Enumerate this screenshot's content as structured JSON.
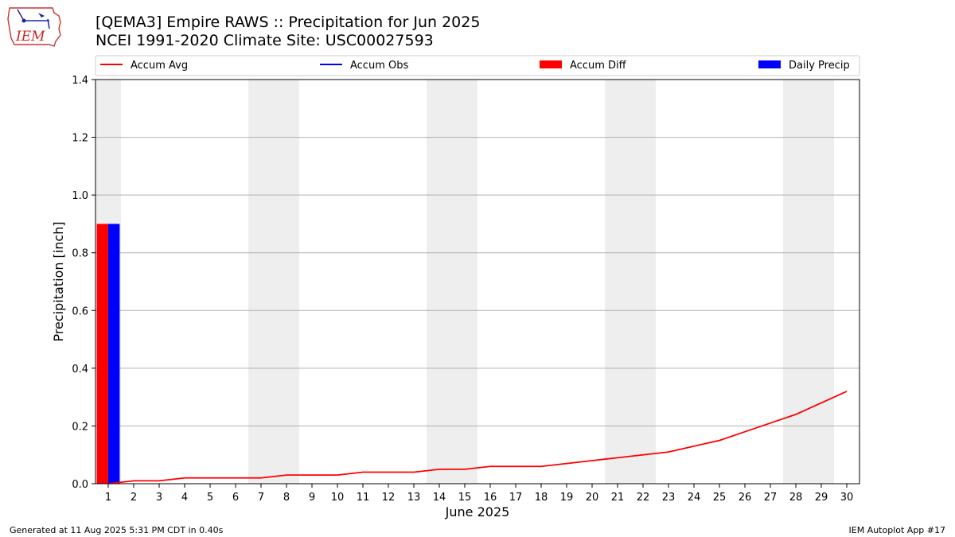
{
  "header": {
    "title_line1": "[QEMA3] Empire RAWS :: Precipitation for Jun 2025",
    "title_line2": "NCEI 1991-2020 Climate Site: USC00027593"
  },
  "logo": {
    "text": "IEM",
    "icon": "iowa-state-outline-logo"
  },
  "footer": {
    "left": "Generated at 11 Aug 2025 5:31 PM CDT in 0.40s",
    "right": "IEM Autoplot App #17"
  },
  "colors": {
    "avg": "#ff0000",
    "obs": "#0000ff",
    "diff": "#ff0000",
    "daily": "#0000ff",
    "weekend": "#eeeeee",
    "grid": "#b0b0b0"
  },
  "chart_data": {
    "type": "bar",
    "xlabel": "June 2025",
    "ylabel": "Precipitation [inch]",
    "ylim": [
      0,
      1.4
    ],
    "yticks": [
      "0.0",
      "0.2",
      "0.4",
      "0.6",
      "0.8",
      "1.0",
      "1.2",
      "1.4"
    ],
    "days": [
      1,
      2,
      3,
      4,
      5,
      6,
      7,
      8,
      9,
      10,
      11,
      12,
      13,
      14,
      15,
      16,
      17,
      18,
      19,
      20,
      21,
      22,
      23,
      24,
      25,
      26,
      27,
      28,
      29,
      30
    ],
    "weekend_spans": [
      [
        1,
        1
      ],
      [
        7,
        8
      ],
      [
        14,
        15
      ],
      [
        21,
        22
      ],
      [
        28,
        29
      ]
    ],
    "legend": [
      "Accum Avg",
      "Accum Obs",
      "Accum Diff",
      "Daily Precip"
    ],
    "grid": true,
    "series": [
      {
        "name": "Accum Avg",
        "kind": "line",
        "values": [
          0.0,
          0.01,
          0.01,
          0.02,
          0.02,
          0.02,
          0.02,
          0.03,
          0.03,
          0.03,
          0.04,
          0.04,
          0.04,
          0.05,
          0.05,
          0.06,
          0.06,
          0.06,
          0.07,
          0.08,
          0.09,
          0.1,
          0.11,
          0.13,
          0.15,
          0.18,
          0.21,
          0.24,
          0.28,
          0.32
        ]
      },
      {
        "name": "Accum Diff",
        "kind": "bar",
        "x": [
          1
        ],
        "values": [
          0.9
        ]
      },
      {
        "name": "Daily Precip",
        "kind": "bar",
        "x": [
          1
        ],
        "values": [
          0.9
        ]
      }
    ]
  }
}
